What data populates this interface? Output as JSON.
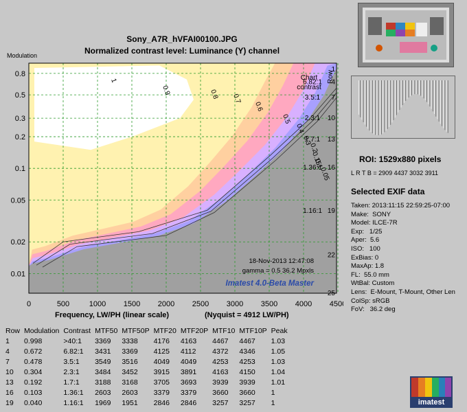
{
  "header": {
    "filename": "Sony_A7R_hVFAI00100.JPG",
    "subtitle": "Normalized contrast level:  Luminance (Y) channel"
  },
  "chart_data": {
    "type": "heatmap",
    "title": "Sony_A7R_hVFAI00100.JPG",
    "subtitle": "Normalized contrast level:  Luminance (Y) channel",
    "xlabel": "Frequency, LW/PH (linear scale)",
    "nyquist_label": "(Nyquist = 4912 LW/PH)",
    "ylabel": "Modulation",
    "xlim": [
      0,
      4912
    ],
    "ylim": [
      0.0065,
      1.0
    ],
    "yscale": "log",
    "x_ticks": [
      0,
      500,
      1000,
      1500,
      2000,
      2500,
      3000,
      3500,
      4000,
      4500
    ],
    "y_ticks": [
      0.01,
      0.02,
      0.05,
      0.1,
      0.2,
      0.3,
      0.5,
      0.8
    ],
    "y_tick_labels": [
      "0.01",
      "0.02",
      "0.05",
      "0.1",
      "0.2",
      "0.3",
      "0.5",
      "0.8"
    ],
    "grid": true,
    "right_axis": {
      "title": "Row",
      "header": "Chart contrast",
      "ticks": [
        {
          "row": "1",
          "contrast": "",
          "mod": 1.0
        },
        {
          "row": "4",
          "contrast": "6.82:1",
          "mod": 0.672
        },
        {
          "row": "7",
          "contrast": "3.5:1",
          "mod": 0.478
        },
        {
          "row": "10",
          "contrast": "2.3:1",
          "mod": 0.304
        },
        {
          "row": "13",
          "contrast": "1.7:1",
          "mod": 0.192
        },
        {
          "row": "16",
          "contrast": "1.36:1",
          "mod": 0.103
        },
        {
          "row": "19",
          "contrast": "1.16:1",
          "mod": 0.04
        },
        {
          "row": "22",
          "contrast": "",
          "mod": 0.0152
        },
        {
          "row": "25",
          "contrast": "",
          "mod": 0.0066
        }
      ]
    },
    "contours": [
      {
        "level": "1",
        "x": [
          60,
          500,
          1600,
          2600,
          3500,
          4100,
          4700
        ],
        "y": [
          0.0125,
          0.02,
          0.025,
          0.04,
          0.13,
          0.3,
          0.85
        ]
      },
      {
        "level": "0.9",
        "x": [
          110,
          600,
          1800,
          2650,
          3550,
          4150,
          4750
        ],
        "y": [
          0.012,
          0.019,
          0.024,
          0.039,
          0.125,
          0.29,
          0.85
        ]
      },
      {
        "level": "0.7",
        "x": [
          200,
          700,
          2000,
          2700,
          3600,
          4200,
          4800
        ],
        "y": [
          0.0115,
          0.018,
          0.023,
          0.038,
          0.12,
          0.28,
          0.85
        ]
      }
    ],
    "contour_labels": [
      "1",
      "0.9",
      "0.8",
      "0.7",
      "0.6",
      "0.5",
      "0.4",
      "0.3",
      "0.2",
      "0.15",
      "0.1",
      "0.05"
    ],
    "annotations": [
      "18-Nov-2013 12:47:08",
      "gamma = 0.5   36.2 Mpxls",
      "Imatest 4.0-Beta Master"
    ]
  },
  "table": {
    "headers": [
      "Row",
      "Modulation",
      "Contrast",
      "MTF50",
      "MTF50P",
      "MTF20",
      "MTF20P",
      "MTF10",
      "MTF10P",
      "Peak"
    ],
    "rows": [
      [
        "1",
        "0.998",
        ">40:1",
        "3369",
        "3338",
        "4176",
        "4163",
        "4467",
        "4467",
        "1.03"
      ],
      [
        "4",
        "0.672",
        "6.82:1",
        "3431",
        "3369",
        "4125",
        "4112",
        "4372",
        "4346",
        "1.05"
      ],
      [
        "7",
        "0.478",
        "3.5:1",
        "3549",
        "3516",
        "4049",
        "4049",
        "4253",
        "4253",
        "1.03"
      ],
      [
        "10",
        "0.304",
        "2.3:1",
        "3484",
        "3452",
        "3915",
        "3891",
        "4163",
        "4150",
        "1.04"
      ],
      [
        "13",
        "0.192",
        "1.7:1",
        "3188",
        "3168",
        "3705",
        "3693",
        "3939",
        "3939",
        "1.01"
      ],
      [
        "16",
        "0.103",
        "1.36:1",
        "2603",
        "2603",
        "3379",
        "3379",
        "3660",
        "3660",
        "1"
      ],
      [
        "19",
        "0.040",
        "1.16:1",
        "1969",
        "1951",
        "2846",
        "2846",
        "3257",
        "3257",
        "1"
      ]
    ]
  },
  "side": {
    "roi": "ROI:  1529x880 pixels",
    "lrtb": "L R  T B = 2909 4437  3032 3911",
    "exif_title": "Selected EXIF data",
    "exif": [
      "Taken: 2013:11:15 22:59:25-07:00",
      "Make:  SONY",
      "Model: ILCE-7R",
      "Exp:   1/25",
      "Aper:  5.6",
      "ISO:   100",
      "ExBias: 0",
      "MaxAp: 1.8",
      "FL:  55.0 mm",
      "WtBal: Custom",
      "Lens:  E-Mount, T-Mount, Other Len",
      "ColSp: sRGB",
      "FoV:   36.2 deg"
    ],
    "logo_text": "imatest"
  },
  "colors": {
    "background": "#c8c8c8",
    "grid": "#2a9a2a",
    "watermark": "#2a4aa8",
    "white_zone": "#ffffff",
    "yellow_zone": "#fff2b0",
    "peach_zone": "#ffd0a0",
    "pink_zone": "#ffa8c0",
    "lavender_zone": "#d8b0ff",
    "blue_zone": "#a8a0ff",
    "gray_zone": "#a0a0a0"
  }
}
